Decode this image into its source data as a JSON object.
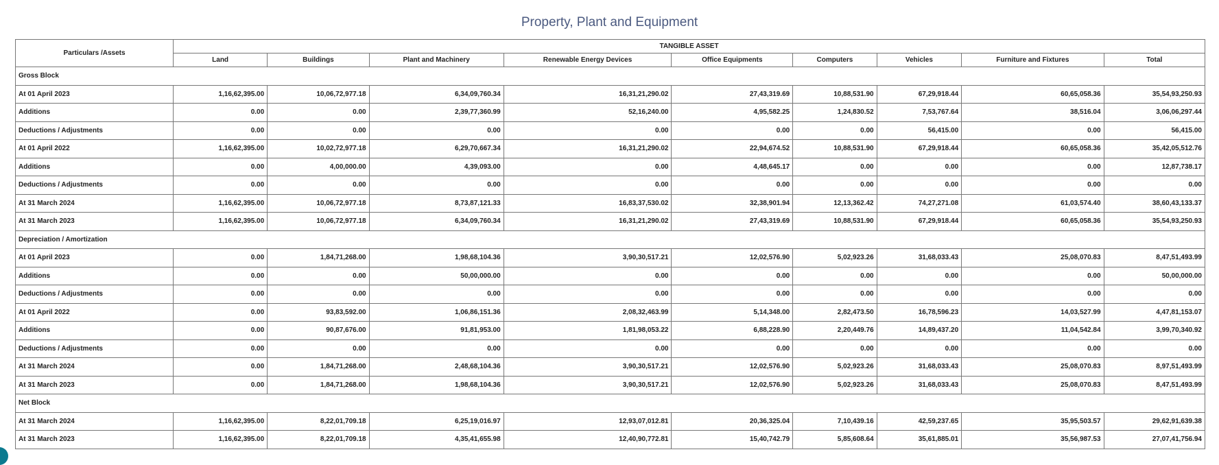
{
  "title": "Property, Plant and Equipment",
  "table": {
    "corner": "Particulars /Assets",
    "group": "TANGIBLE ASSET",
    "columns": [
      "Land",
      "Buildings",
      "Plant and Machinery",
      "Renewable Energy Devices",
      "Office Equipments",
      "Computers",
      "Vehicles",
      "Furniture and Fixtures",
      "Total"
    ],
    "rows": [
      [
        "Gross Block"
      ],
      [
        "At 01 April 2023",
        "1,16,62,395.00",
        "10,06,72,977.18",
        "6,34,09,760.34",
        "16,31,21,290.02",
        "27,43,319.69",
        "10,88,531.90",
        "67,29,918.44",
        "60,65,058.36",
        "35,54,93,250.93"
      ],
      [
        "Additions",
        "0.00",
        "0.00",
        "2,39,77,360.99",
        "52,16,240.00",
        "4,95,582.25",
        "1,24,830.52",
        "7,53,767.64",
        "38,516.04",
        "3,06,06,297.44"
      ],
      [
        "Deductions / Adjustments",
        "0.00",
        "0.00",
        "0.00",
        "0.00",
        "0.00",
        "0.00",
        "56,415.00",
        "0.00",
        "56,415.00"
      ],
      [
        "At 01 April 2022",
        "1,16,62,395.00",
        "10,02,72,977.18",
        "6,29,70,667.34",
        "16,31,21,290.02",
        "22,94,674.52",
        "10,88,531.90",
        "67,29,918.44",
        "60,65,058.36",
        "35,42,05,512.76"
      ],
      [
        "Additions",
        "0.00",
        "4,00,000.00",
        "4,39,093.00",
        "0.00",
        "4,48,645.17",
        "0.00",
        "0.00",
        "0.00",
        "12,87,738.17"
      ],
      [
        "Deductions / Adjustments",
        "0.00",
        "0.00",
        "0.00",
        "0.00",
        "0.00",
        "0.00",
        "0.00",
        "0.00",
        "0.00"
      ],
      [
        "At 31 March 2024",
        "1,16,62,395.00",
        "10,06,72,977.18",
        "8,73,87,121.33",
        "16,83,37,530.02",
        "32,38,901.94",
        "12,13,362.42",
        "74,27,271.08",
        "61,03,574.40",
        "38,60,43,133.37"
      ],
      [
        "At 31 March 2023",
        "1,16,62,395.00",
        "10,06,72,977.18",
        "6,34,09,760.34",
        "16,31,21,290.02",
        "27,43,319.69",
        "10,88,531.90",
        "67,29,918.44",
        "60,65,058.36",
        "35,54,93,250.93"
      ],
      [
        "Depreciation / Amortization"
      ],
      [
        "At 01 April 2023",
        "0.00",
        "1,84,71,268.00",
        "1,98,68,104.36",
        "3,90,30,517.21",
        "12,02,576.90",
        "5,02,923.26",
        "31,68,033.43",
        "25,08,070.83",
        "8,47,51,493.99"
      ],
      [
        "Additions",
        "0.00",
        "0.00",
        "50,00,000.00",
        "0.00",
        "0.00",
        "0.00",
        "0.00",
        "0.00",
        "50,00,000.00"
      ],
      [
        "Deductions / Adjustments",
        "0.00",
        "0.00",
        "0.00",
        "0.00",
        "0.00",
        "0.00",
        "0.00",
        "0.00",
        "0.00"
      ],
      [
        "At 01 April 2022",
        "0.00",
        "93,83,592.00",
        "1,06,86,151.36",
        "2,08,32,463.99",
        "5,14,348.00",
        "2,82,473.50",
        "16,78,596.23",
        "14,03,527.99",
        "4,47,81,153.07"
      ],
      [
        "Additions",
        "0.00",
        "90,87,676.00",
        "91,81,953.00",
        "1,81,98,053.22",
        "6,88,228.90",
        "2,20,449.76",
        "14,89,437.20",
        "11,04,542.84",
        "3,99,70,340.92"
      ],
      [
        "Deductions / Adjustments",
        "0.00",
        "0.00",
        "0.00",
        "0.00",
        "0.00",
        "0.00",
        "0.00",
        "0.00",
        "0.00"
      ],
      [
        "At 31 March 2024",
        "0.00",
        "1,84,71,268.00",
        "2,48,68,104.36",
        "3,90,30,517.21",
        "12,02,576.90",
        "5,02,923.26",
        "31,68,033.43",
        "25,08,070.83",
        "8,97,51,493.99"
      ],
      [
        "At 31 March 2023",
        "0.00",
        "1,84,71,268.00",
        "1,98,68,104.36",
        "3,90,30,517.21",
        "12,02,576.90",
        "5,02,923.26",
        "31,68,033.43",
        "25,08,070.83",
        "8,47,51,493.99"
      ],
      [
        "Net Block"
      ],
      [
        "At 31 March 2024",
        "1,16,62,395.00",
        "8,22,01,709.18",
        "6,25,19,016.97",
        "12,93,07,012.81",
        "20,36,325.04",
        "7,10,439.16",
        "42,59,237.65",
        "35,95,503.57",
        "29,62,91,639.38"
      ],
      [
        "At 31 March 2023",
        "1,16,62,395.00",
        "8,22,01,709.18",
        "4,35,41,655.98",
        "12,40,90,772.81",
        "15,40,742.79",
        "5,85,608.64",
        "35,61,885.01",
        "35,56,987.53",
        "27,07,41,756.94"
      ]
    ]
  }
}
